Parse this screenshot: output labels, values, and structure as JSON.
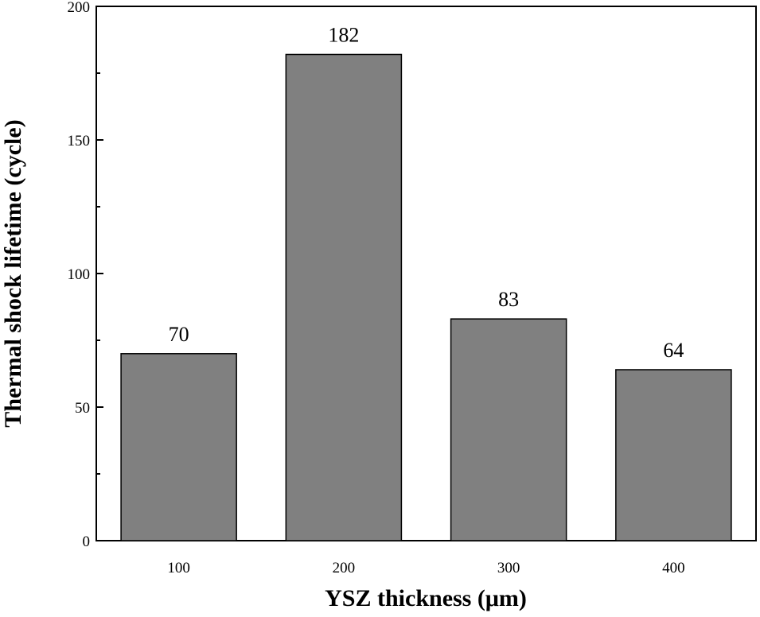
{
  "chart_data": {
    "type": "bar",
    "categories": [
      "100",
      "200",
      "300",
      "400"
    ],
    "values": [
      70,
      182,
      83,
      64
    ],
    "data_labels": [
      "70",
      "182",
      "83",
      "64"
    ],
    "xlabel": "YSZ thickness (μm)",
    "ylabel": "Thermal shock lifetime (cycle)",
    "ylim": [
      0,
      200
    ],
    "yticks": [
      0,
      50,
      100,
      150,
      200
    ],
    "ytick_labels": [
      "0",
      "50",
      "100",
      "150",
      "200"
    ],
    "grid": false,
    "bar_color": "#808080",
    "bar_edge_color": "#000000"
  }
}
